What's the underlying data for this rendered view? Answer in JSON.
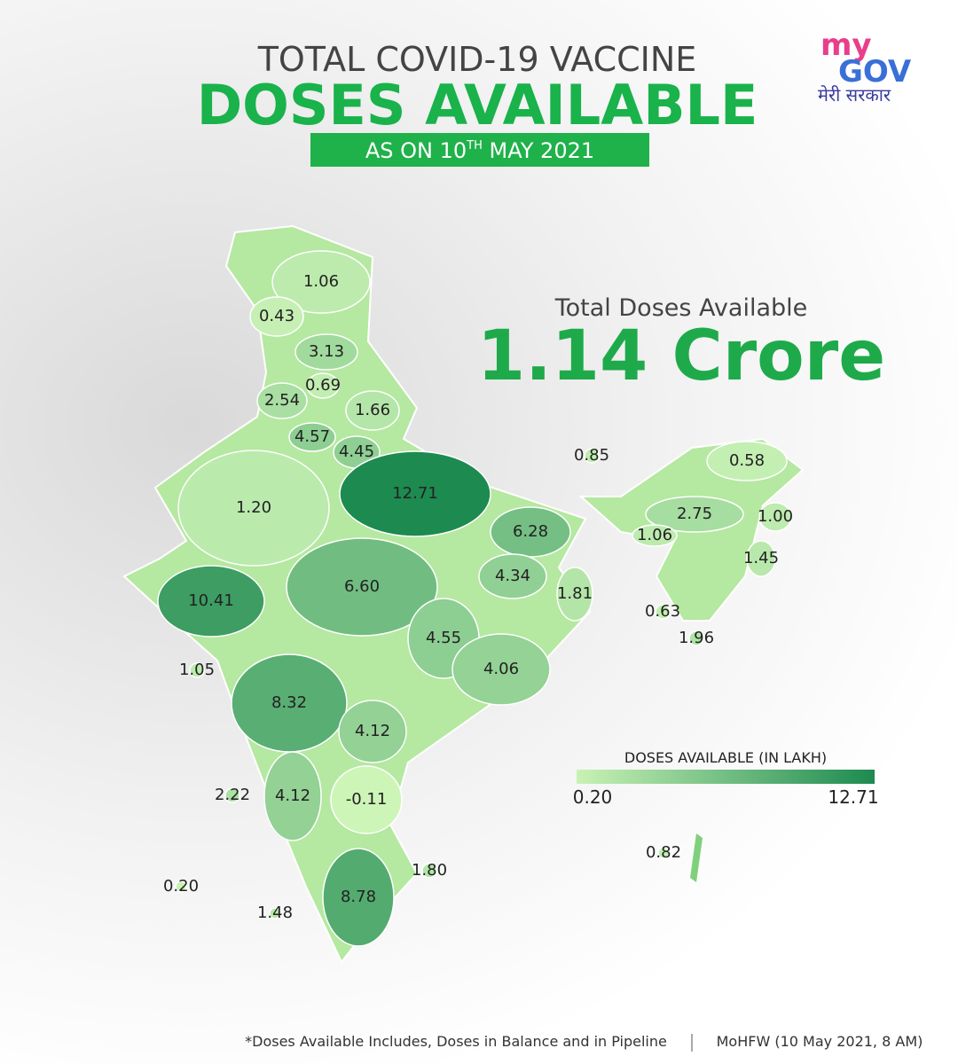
{
  "header": {
    "title_line1": "TOTAL COVID-19 VACCINE",
    "title_line2": "DOSES AVAILABLE",
    "date_prefix": "AS ON 10",
    "date_sup": "TH",
    "date_suffix": " MAY 2021"
  },
  "logo": {
    "my": "my",
    "gov": "GOV",
    "tagline": "मेरी सरकार"
  },
  "total": {
    "label": "Total Doses Available",
    "value": "1.14 Crore"
  },
  "map_data": {
    "type": "choropleth",
    "values": [
      1.06,
      0.43,
      3.13,
      0.69,
      2.54,
      1.66,
      4.57,
      4.45,
      12.71,
      1.2,
      6.28,
      10.41,
      6.6,
      4.34,
      1.81,
      4.55,
      1.05,
      4.06,
      8.32,
      4.12,
      2.22,
      4.12,
      -0.11,
      1.8,
      8.78,
      0.2,
      1.48,
      0.85,
      0.58,
      2.75,
      1.0,
      1.06,
      1.45,
      0.63,
      1.96,
      0.82
    ],
    "value_labels": [
      "1.06",
      "0.43",
      "3.13",
      "0.69",
      "2.54",
      "1.66",
      "4.57",
      "4.45",
      "12.71",
      "1.20",
      "6.28",
      "10.41",
      "6.60",
      "4.34",
      "1.81",
      "4.55",
      "1.05",
      "4.06",
      "8.32",
      "4.12",
      "2.22",
      "4.12",
      "-0.11",
      "1.80",
      "8.78",
      "0.20",
      "1.48",
      "0.85",
      "0.58",
      "2.75",
      "1.00",
      "1.06",
      "1.45",
      "0.63",
      "1.96",
      "0.82"
    ],
    "legend": {
      "title": "DOSES AVAILABLE (IN LAKH)",
      "min": 0.2,
      "max": 12.71,
      "min_label": "0.20",
      "max_label": "12.71",
      "color_min": "#c9f2b5",
      "color_max": "#1d8a50"
    }
  },
  "footer": {
    "note": "*Doses Available Includes, Doses in Balance and in Pipeline",
    "source": "MoHFW (10 May 2021, 8 AM)"
  }
}
